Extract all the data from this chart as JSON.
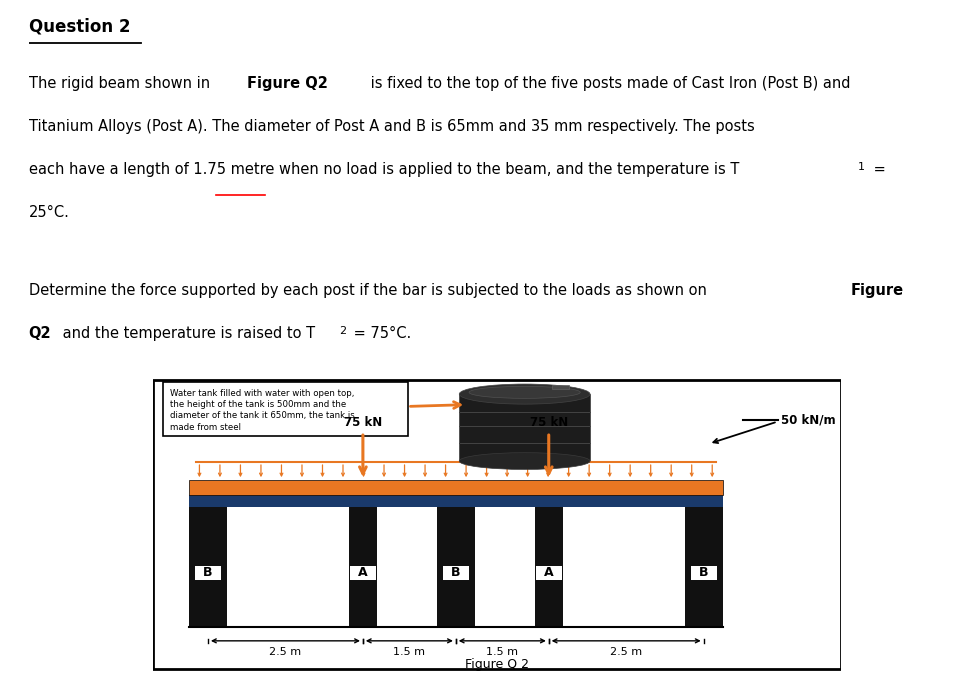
{
  "title": "Question 2",
  "p1_line1": "The rigid beam shown in ",
  "p1_bold1": "Figure Q2",
  "p1_line1b": " is fixed to the top of the five posts made of Cast Iron (Post B) and",
  "p1_line2": "Titanium Alloys (Post A). The diameter of Post A and B is 65mm and 35 mm respectively. The posts",
  "p1_line3a": "each have a length of 1.75 metre when no load is applied to the beam, and the temperature is T",
  "p1_line3b": "1",
  "p1_line3c": " =",
  "p1_line4": "25°C.",
  "p2_line1a": "Determine the force supported by each post if the bar is subjected to the loads as shown on ",
  "p2_bold1": "Figure",
  "p2_line2a": "Q2",
  "p2_line2b": " and the temperature is raised to T",
  "p2_line2c": "2",
  "p2_line2d": " = 75°C.",
  "fig_caption": "Figure Q 2",
  "tank_note_line1": "Water tank filled with water with open top,",
  "tank_note_line2": "the height of the tank is 500mm and the",
  "tank_note_line3": "diameter of the tank it 650mm, the tank is",
  "tank_note_line4": "made from steel",
  "beam_color": "#E87722",
  "beam_top_color": "#1a3a6b",
  "post_color": "#111111",
  "bg_color": "#ffffff",
  "post_labels": [
    "B",
    "A",
    "B",
    "A",
    "B"
  ],
  "dist_labels": [
    "2.5 m",
    "1.5 m",
    "1.5 m",
    "2.5 m"
  ]
}
